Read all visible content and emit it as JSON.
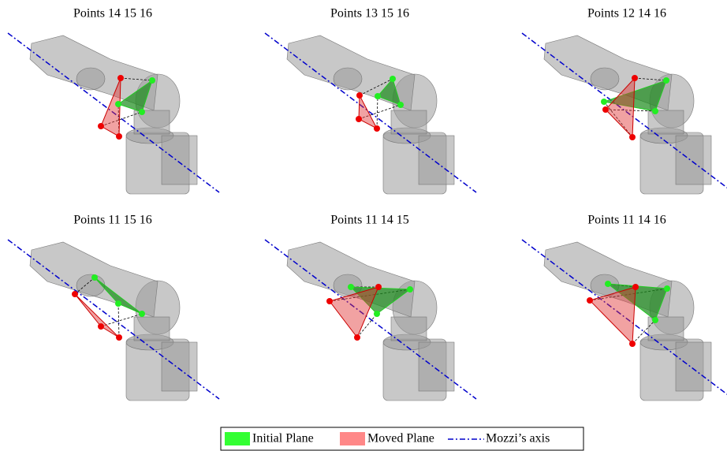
{
  "panels": [
    {
      "title": "Points 14 15 16"
    },
    {
      "title": "Points 13 15 16"
    },
    {
      "title": "Points 12 14 16"
    },
    {
      "title": "Points 11 15 16"
    },
    {
      "title": "Points 11 14 15"
    },
    {
      "title": "Points 11 14 16"
    }
  ],
  "legend": {
    "items": [
      {
        "label": "Initial Plane"
      },
      {
        "label": "Moved Plane"
      },
      {
        "label": "Mozzi’s axis"
      }
    ]
  }
}
